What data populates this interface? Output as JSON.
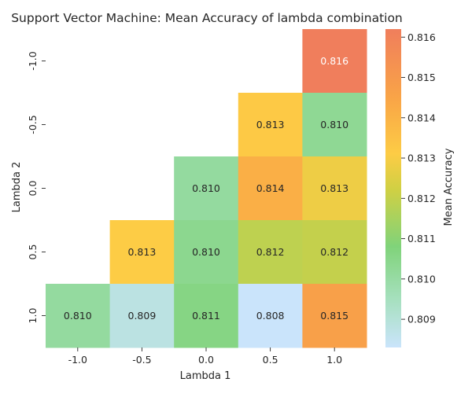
{
  "chart_data": {
    "type": "heatmap",
    "title": "Support Vector Machine: Mean Accuracy of lambda combination",
    "xlabel": "Lambda 1",
    "ylabel": "Lambda 2",
    "colorbar_label": "Mean Accuracy",
    "x_categories": [
      "-1.0",
      "-0.5",
      "0.0",
      "0.5",
      "1.0"
    ],
    "y_categories": [
      "-1.0",
      "-0.5",
      "0.0",
      "0.5",
      "1.0"
    ],
    "values": [
      [
        null,
        null,
        null,
        null,
        0.8162
      ],
      [
        null,
        null,
        null,
        0.8132,
        0.8103
      ],
      [
        null,
        null,
        0.8101,
        0.8141,
        0.8128
      ],
      [
        null,
        0.8131,
        0.8104,
        0.8119,
        0.812
      ],
      [
        0.8101,
        0.8088,
        0.8106,
        0.8083,
        0.8147
      ]
    ],
    "cell_labels": [
      [
        null,
        null,
        null,
        null,
        "0.816"
      ],
      [
        null,
        null,
        null,
        "0.813",
        "0.810"
      ],
      [
        null,
        null,
        "0.810",
        "0.814",
        "0.813"
      ],
      [
        null,
        "0.813",
        "0.810",
        "0.812",
        "0.812"
      ],
      [
        "0.810",
        "0.809",
        "0.811",
        "0.808",
        "0.815"
      ]
    ],
    "color_range": [
      0.8083,
      0.8162
    ],
    "colorbar_ticks": [
      "0.809",
      "0.810",
      "0.811",
      "0.812",
      "0.813",
      "0.814",
      "0.815",
      "0.816"
    ],
    "colorbar_tick_values": [
      0.809,
      0.81,
      0.811,
      0.812,
      0.813,
      0.814,
      0.815,
      0.816
    ],
    "colormap": [
      {
        "v": 0.8083,
        "color": "#cae4fb"
      },
      {
        "v": 0.8095,
        "color": "#a6e0be"
      },
      {
        "v": 0.8108,
        "color": "#80d37a"
      },
      {
        "v": 0.8122,
        "color": "#cfd044"
      },
      {
        "v": 0.8131,
        "color": "#fdcc45"
      },
      {
        "v": 0.8145,
        "color": "#f9a447"
      },
      {
        "v": 0.8162,
        "color": "#f07e5c"
      }
    ]
  }
}
